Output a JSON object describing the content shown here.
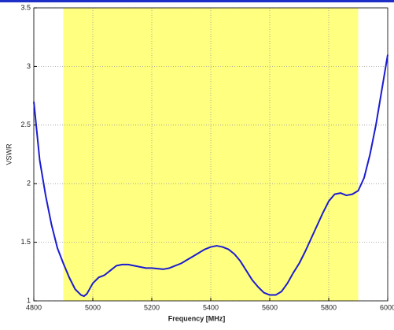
{
  "chart_data": {
    "type": "line",
    "x_label": "Frequency [MHz]",
    "y_label": "VSWR",
    "x": [
      4800,
      4810,
      4820,
      4840,
      4860,
      4880,
      4900,
      4920,
      4940,
      4960,
      4970,
      4980,
      5000,
      5020,
      5040,
      5060,
      5080,
      5100,
      5120,
      5140,
      5160,
      5180,
      5200,
      5240,
      5260,
      5280,
      5300,
      5320,
      5340,
      5360,
      5380,
      5400,
      5420,
      5440,
      5460,
      5480,
      5500,
      5520,
      5540,
      5560,
      5580,
      5600,
      5620,
      5640,
      5660,
      5680,
      5700,
      5720,
      5740,
      5760,
      5780,
      5800,
      5820,
      5840,
      5860,
      5880,
      5900,
      5920,
      5940,
      5960,
      5980,
      6000
    ],
    "values": [
      2.7,
      2.45,
      2.2,
      1.9,
      1.65,
      1.45,
      1.32,
      1.2,
      1.1,
      1.05,
      1.04,
      1.06,
      1.15,
      1.2,
      1.22,
      1.26,
      1.3,
      1.31,
      1.31,
      1.3,
      1.29,
      1.28,
      1.28,
      1.27,
      1.28,
      1.3,
      1.32,
      1.35,
      1.38,
      1.41,
      1.44,
      1.46,
      1.47,
      1.46,
      1.44,
      1.4,
      1.34,
      1.26,
      1.18,
      1.12,
      1.07,
      1.05,
      1.05,
      1.08,
      1.15,
      1.24,
      1.32,
      1.42,
      1.53,
      1.64,
      1.75,
      1.85,
      1.91,
      1.92,
      1.9,
      1.91,
      1.94,
      2.05,
      2.25,
      2.5,
      2.8,
      3.1
    ],
    "color": "#1c1cd0",
    "shaded_region": [
      4900,
      5900
    ],
    "shaded_color": "#ffff80",
    "xlim": [
      4800,
      6000
    ],
    "xticks": [
      4800,
      5000,
      5200,
      5400,
      5600,
      5800,
      6000
    ],
    "ylim": [
      1,
      3.5
    ],
    "yticks": [
      1,
      1.5,
      2,
      2.5,
      3,
      3.5
    ],
    "grid": true
  }
}
